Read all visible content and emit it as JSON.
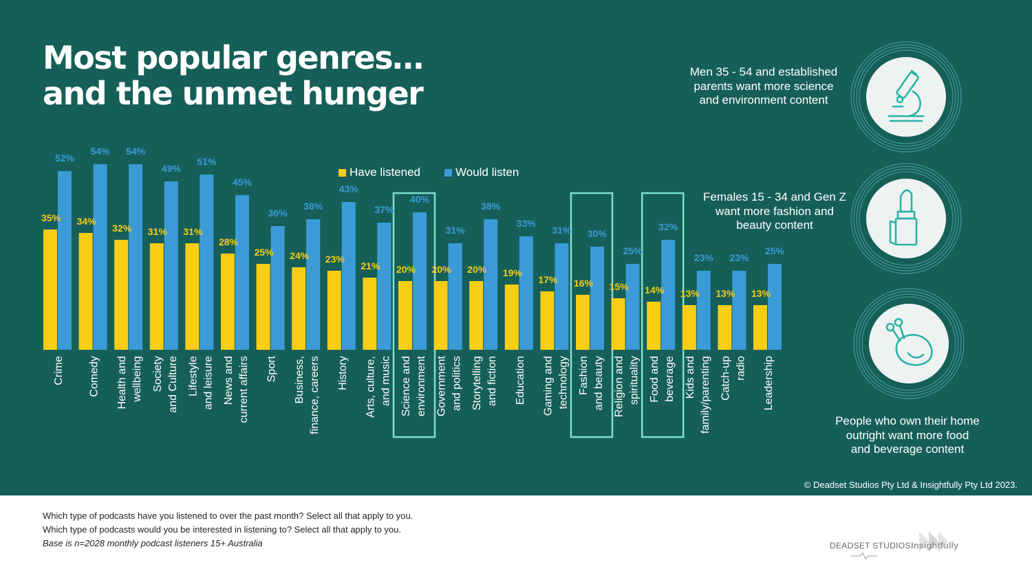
{
  "title": {
    "line1": "Most popular genres…",
    "line2": "and the unmet hunger"
  },
  "colors": {
    "background": "#165f59",
    "have_listened": "#f8cd14",
    "would_listen": "#3b9bd7",
    "highlight": "#7fe0cf",
    "icon_circle": "#eef3f2",
    "icon_stroke": "#2ab3a6"
  },
  "legend": {
    "items": [
      {
        "label": "Have listened",
        "color": "#f8cd14"
      },
      {
        "label": "Would listen",
        "color": "#3b9bd7"
      }
    ]
  },
  "chart_data": {
    "type": "bar",
    "title": "Most popular genres… and the unmet hunger",
    "ylim": [
      0,
      60
    ],
    "categories": [
      [
        "Crime"
      ],
      [
        "Comedy"
      ],
      [
        "Health and",
        "wellbeing"
      ],
      [
        "Society",
        "and Culture"
      ],
      [
        "Lifestyle",
        "and leisure"
      ],
      [
        "News and",
        "current affairs"
      ],
      [
        "Sport"
      ],
      [
        "Business,",
        "finance, careers"
      ],
      [
        "History"
      ],
      [
        "Arts, culture,",
        "and music"
      ],
      [
        "Science and",
        "environment"
      ],
      [
        "Government",
        "and politics"
      ],
      [
        "Storytelling",
        "and fiction"
      ],
      [
        "Education"
      ],
      [
        "Gaming and",
        "technology"
      ],
      [
        "Fashion",
        "and beauty"
      ],
      [
        "Religion and",
        "spirituality"
      ],
      [
        "Food and",
        "beverage"
      ],
      [
        "Kids and",
        "family/parenting"
      ],
      [
        "Catch-up",
        "radio"
      ],
      [
        "Leadership"
      ]
    ],
    "series": [
      {
        "name": "Have listened",
        "values": [
          35,
          34,
          32,
          31,
          31,
          28,
          25,
          24,
          23,
          21,
          20,
          20,
          20,
          19,
          17,
          16,
          15,
          14,
          13,
          13,
          13
        ]
      },
      {
        "name": "Would listen",
        "values": [
          52,
          54,
          54,
          49,
          51,
          45,
          36,
          38,
          43,
          37,
          40,
          31,
          38,
          33,
          31,
          30,
          25,
          32,
          23,
          23,
          25
        ]
      }
    ],
    "highlighted": [
      "Science and environment",
      "Fashion and beauty",
      "Food and beverage"
    ]
  },
  "callouts": [
    {
      "text": [
        "Men 35 - 54 and established",
        "parents want more science",
        "and environment content"
      ],
      "icon": "microscope-icon"
    },
    {
      "text": [
        "Females 15 - 34 and Gen Z",
        "want more fashion and",
        "beauty content"
      ],
      "icon": "lipstick-icon"
    },
    {
      "text": [
        "People who own their home",
        "outright want more food",
        "and beverage content"
      ],
      "icon": "roast-chicken-icon"
    }
  ],
  "copyright": "© Deadset Studios Pty Ltd & Insightfully Pty Ltd 2023.",
  "notes": {
    "q1": "Which type of podcasts have you listened to over the past month? Select all that apply to you.",
    "q2": "Which type of podcasts would you be interested in listening to? Select all that apply to you.",
    "base": "Base is n=2028 monthly podcast listeners 15+ Australia"
  },
  "logos": {
    "deadset": "DEADSET STUDIOS",
    "insightfully": "Insightfully"
  }
}
